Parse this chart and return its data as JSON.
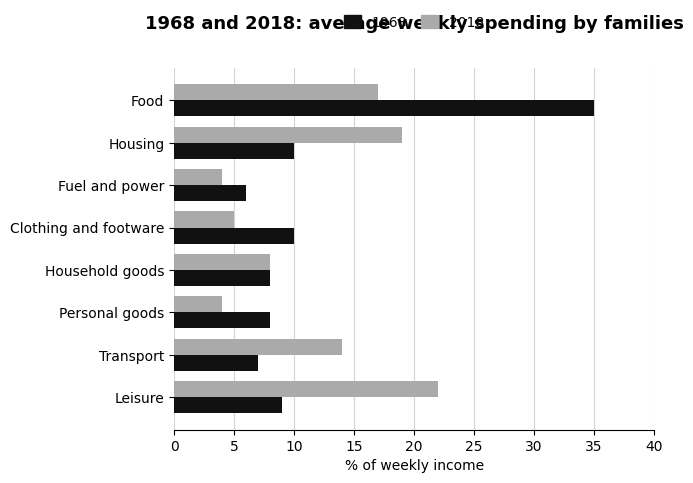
{
  "title": "1968 and 2018: average weekly spending by families",
  "categories": [
    "Food",
    "Housing",
    "Fuel and power",
    "Clothing and footware",
    "Household goods",
    "Personal goods",
    "Transport",
    "Leisure"
  ],
  "values_1968": [
    35,
    10,
    6,
    10,
    8,
    8,
    7,
    9
  ],
  "values_2018": [
    17,
    19,
    4,
    5,
    8,
    4,
    14,
    22
  ],
  "color_1968": "#111111",
  "color_2018": "#aaaaaa",
  "xlabel": "% of weekly income",
  "xlim": [
    0,
    40
  ],
  "xticks": [
    0,
    5,
    10,
    15,
    20,
    25,
    30,
    35,
    40
  ],
  "legend_labels": [
    "1968",
    "2018"
  ],
  "bar_height": 0.38,
  "title_fontsize": 13,
  "label_fontsize": 10,
  "tick_fontsize": 10
}
